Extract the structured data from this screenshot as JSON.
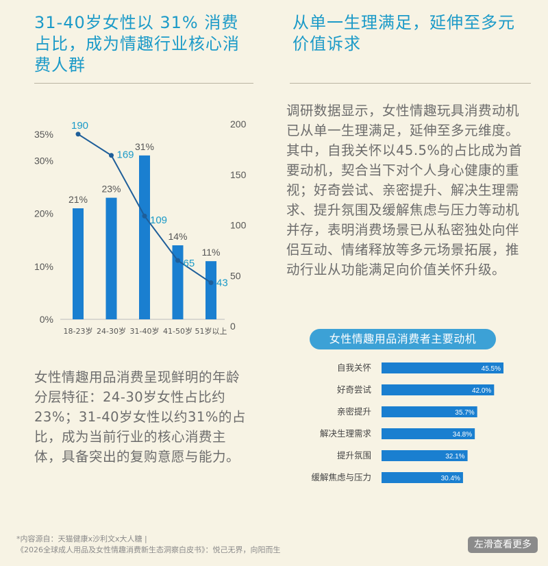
{
  "left_title": "31-40岁女性以 31% 消费占比，成为情趣行业核心消费人群",
  "right_title": "从单一生理满足，延伸至多元价值诉求",
  "right_paragraph": "调研数据显示，女性情趣玩具消费动机已从单一生理满足，延伸至多元维度。其中，自我关怀以45.5%的占比成为首要动机，契合当下对个人身心健康的重视；好奇尝试、亲密提升、解决生理需求、提升氛围及缓解焦虑与压力等动机并存，表明消费场景已从私密独处向伴侣互动、情绪释放等多元场景拓展，推动行业从功能满足向价值关怀升级。",
  "left_paragraph": "女性情趣用品消费呈现鲜明的年龄分层特征：24-30岁女性占比约23%；31-40岁女性以约31%的占比，成为当前行业的核心消费主体，具备突出的复购意愿与能力。",
  "footnote_line1": "*内容源自：天猫健康x沙利文x大人糖 |",
  "footnote_line2": "《2026全球成人用品及女性情趣消费新生态洞察白皮书》：悦己无界，向阳而生",
  "swipe_hint": "左滑查看更多",
  "colors": {
    "accent": "#1b9ac8",
    "bar": "#1a7fd0",
    "line": "#1e5e99",
    "background": "#f7f3e4"
  },
  "chart_data": [
    {
      "type": "bar",
      "categories": [
        "18-23岁",
        "24-30岁",
        "31-40岁",
        "41-50岁",
        "51岁以上"
      ],
      "series": [
        {
          "type": "bar",
          "values": [
            21,
            23,
            31,
            14,
            11
          ],
          "labels": [
            "21%",
            "23%",
            "31%",
            "14%",
            "11%"
          ]
        },
        {
          "type": "line",
          "values": [
            190,
            169,
            109,
            65,
            43
          ],
          "labels": [
            "190",
            "169",
            "109",
            "65",
            "43"
          ]
        }
      ],
      "y_left": {
        "range": [
          0,
          35
        ],
        "ticks": [
          "0%",
          "10%",
          "20%",
          "30%",
          "35%"
        ]
      },
      "y_right": {
        "range": [
          0,
          200
        ],
        "ticks": [
          "0",
          "50",
          "100",
          "150",
          "200"
        ]
      },
      "grid": false
    },
    {
      "type": "bar",
      "orientation": "horizontal",
      "title": "女性情趣用品消费者主要动机",
      "categories": [
        "自我关怀",
        "好奇尝试",
        "亲密提升",
        "解决生理需求",
        "提升氛围",
        "缓解焦虑与压力"
      ],
      "values": [
        45.5,
        42.0,
        35.7,
        34.8,
        32.1,
        30.4
      ],
      "labels": [
        "45.5%",
        "42.0%",
        "35.7%",
        "34.8%",
        "32.1%",
        "30.4%"
      ],
      "xlim": [
        0,
        50
      ]
    }
  ]
}
